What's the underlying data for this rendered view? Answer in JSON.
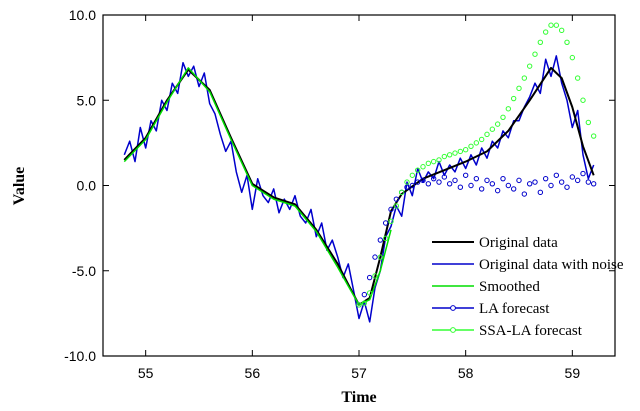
{
  "chart_data": {
    "type": "line",
    "xlabel": "Time",
    "ylabel": "Value",
    "xlim": [
      54.6,
      59.4
    ],
    "ylim": [
      -10.0,
      10.0
    ],
    "xticks": [
      55,
      56,
      57,
      58,
      59
    ],
    "xtick_labels": [
      "55",
      "56",
      "57",
      "58",
      "59"
    ],
    "yticks": [
      -10,
      -5,
      0,
      5,
      10
    ],
    "ytick_labels": [
      "-10.0",
      "-5.0",
      "0.0",
      "5.0",
      "10.0"
    ],
    "grid": false,
    "legend_position": "lower-right",
    "series": [
      {
        "name": "Original data",
        "color": "#000000",
        "style": "line",
        "x": [
          54.8,
          55.0,
          55.2,
          55.4,
          55.6,
          55.8,
          56.0,
          56.2,
          56.4,
          56.6,
          56.8,
          56.9,
          57.0,
          57.1,
          57.2,
          57.3,
          57.4,
          57.6,
          57.8,
          58.0,
          58.2,
          58.4,
          58.6,
          58.8,
          58.9,
          59.0,
          59.1,
          59.2
        ],
        "y": [
          1.5,
          2.8,
          5.0,
          6.8,
          5.6,
          2.8,
          0.1,
          -0.7,
          -1.1,
          -2.6,
          -4.6,
          -5.8,
          -7.0,
          -6.6,
          -4.2,
          -1.5,
          -0.5,
          0.4,
          0.9,
          1.4,
          2.0,
          3.2,
          5.0,
          6.9,
          6.3,
          4.6,
          2.3,
          0.6
        ]
      },
      {
        "name": "Original data with noise",
        "color": "#0000cc",
        "style": "line",
        "x": [
          54.8,
          54.85,
          54.9,
          54.95,
          55.0,
          55.05,
          55.1,
          55.15,
          55.2,
          55.25,
          55.3,
          55.35,
          55.4,
          55.45,
          55.5,
          55.55,
          55.6,
          55.65,
          55.7,
          55.75,
          55.8,
          55.85,
          55.9,
          55.95,
          56.0,
          56.05,
          56.1,
          56.15,
          56.2,
          56.25,
          56.3,
          56.35,
          56.4,
          56.45,
          56.5,
          56.55,
          56.6,
          56.65,
          56.7,
          56.75,
          56.8,
          56.85,
          56.9,
          56.95,
          57.0,
          57.05,
          57.1,
          57.15,
          57.2,
          57.25,
          57.3,
          57.35,
          57.4,
          57.45,
          57.5,
          57.55,
          57.6,
          57.65,
          57.7,
          57.75,
          57.8,
          57.85,
          57.9,
          57.95,
          58.0,
          58.05,
          58.1,
          58.15,
          58.2,
          58.25,
          58.3,
          58.35,
          58.4,
          58.45,
          58.5,
          58.55,
          58.6,
          58.65,
          58.7,
          58.75,
          58.8,
          58.85,
          58.9,
          58.95,
          59.0,
          59.05,
          59.1,
          59.15,
          59.2
        ],
        "y": [
          1.8,
          2.6,
          1.4,
          3.4,
          2.2,
          3.8,
          3.2,
          5.0,
          4.4,
          6.0,
          5.4,
          7.2,
          6.4,
          7.0,
          5.8,
          6.6,
          4.8,
          4.2,
          3.0,
          2.0,
          2.6,
          0.8,
          -0.4,
          0.6,
          -1.4,
          0.4,
          -0.6,
          -1.0,
          -0.2,
          -1.6,
          -0.8,
          -1.4,
          -0.6,
          -1.8,
          -2.2,
          -1.4,
          -3.0,
          -2.2,
          -3.8,
          -3.2,
          -4.2,
          -5.4,
          -4.6,
          -6.2,
          -7.8,
          -6.8,
          -8.0,
          -6.0,
          -5.0,
          -3.0,
          -2.4,
          -1.2,
          -1.8,
          0.2,
          -0.6,
          1.0,
          0.2,
          0.8,
          0.4,
          1.4,
          0.6,
          1.2,
          0.8,
          1.6,
          1.0,
          1.8,
          1.2,
          2.2,
          1.6,
          2.6,
          2.2,
          3.2,
          2.8,
          3.8,
          3.8,
          4.6,
          5.2,
          6.0,
          5.4,
          7.4,
          6.4,
          7.6,
          6.0,
          5.0,
          3.4,
          4.4,
          1.8,
          0.4,
          1.2
        ]
      },
      {
        "name": "Smoothed",
        "color": "#00dd00",
        "style": "line",
        "x": [
          54.8,
          55.0,
          55.2,
          55.4,
          55.6,
          55.8,
          56.0,
          56.2,
          56.4,
          56.6,
          56.8,
          56.9,
          57.0,
          57.1,
          57.2,
          57.3
        ],
        "y": [
          1.4,
          2.7,
          4.9,
          6.9,
          5.5,
          2.7,
          0.0,
          -0.8,
          -1.2,
          -2.7,
          -4.8,
          -5.9,
          -7.0,
          -6.7,
          -5.0,
          -2.6
        ]
      },
      {
        "name": "LA forecast",
        "color": "#0000cc",
        "style": "line-circle",
        "x": [
          57.0,
          57.05,
          57.1,
          57.15,
          57.2,
          57.25,
          57.3,
          57.35,
          57.4,
          57.45,
          57.5,
          57.55,
          57.6,
          57.65,
          57.7,
          57.75,
          57.8,
          57.85,
          57.9,
          57.95,
          58.0,
          58.05,
          58.1,
          58.15,
          58.2,
          58.25,
          58.3,
          58.35,
          58.4,
          58.45,
          58.5,
          58.55,
          58.6,
          58.65,
          58.7,
          58.75,
          58.8,
          58.85,
          58.9,
          58.95,
          59.0,
          59.05,
          59.1,
          59.15,
          59.2
        ],
        "y": [
          -7.0,
          -6.4,
          -5.4,
          -4.2,
          -3.2,
          -2.2,
          -1.4,
          -0.8,
          -0.4,
          -0.1,
          0.0,
          0.2,
          0.3,
          0.1,
          0.4,
          0.2,
          0.5,
          0.1,
          0.3,
          -0.1,
          0.6,
          0.0,
          0.4,
          -0.2,
          0.3,
          0.1,
          -0.3,
          0.4,
          0.0,
          -0.2,
          0.3,
          -0.5,
          0.1,
          0.2,
          -0.4,
          0.4,
          0.0,
          0.6,
          0.2,
          -0.1,
          0.5,
          0.3,
          0.7,
          0.2,
          0.1
        ]
      },
      {
        "name": "SSA-LA forecast",
        "color": "#33ff33",
        "style": "line-circle",
        "x": [
          57.0,
          57.05,
          57.1,
          57.15,
          57.2,
          57.25,
          57.3,
          57.35,
          57.4,
          57.45,
          57.5,
          57.55,
          57.6,
          57.65,
          57.7,
          57.75,
          57.8,
          57.85,
          57.9,
          57.95,
          58.0,
          58.05,
          58.1,
          58.15,
          58.2,
          58.25,
          58.3,
          58.35,
          58.4,
          58.45,
          58.5,
          58.55,
          58.6,
          58.65,
          58.7,
          58.75,
          58.8,
          58.85,
          58.9,
          58.95,
          59.0,
          59.05,
          59.1,
          59.15,
          59.2
        ],
        "y": [
          -7.0,
          -6.9,
          -6.3,
          -5.3,
          -4.2,
          -3.1,
          -2.1,
          -1.2,
          -0.4,
          0.2,
          0.6,
          0.9,
          1.1,
          1.3,
          1.4,
          1.5,
          1.7,
          1.8,
          1.9,
          2.0,
          2.1,
          2.3,
          2.5,
          2.7,
          3.0,
          3.3,
          3.6,
          4.0,
          4.5,
          5.1,
          5.7,
          6.3,
          7.0,
          7.7,
          8.4,
          9.0,
          9.4,
          9.4,
          9.1,
          8.4,
          7.5,
          6.3,
          5.0,
          3.7,
          2.9
        ]
      }
    ]
  }
}
